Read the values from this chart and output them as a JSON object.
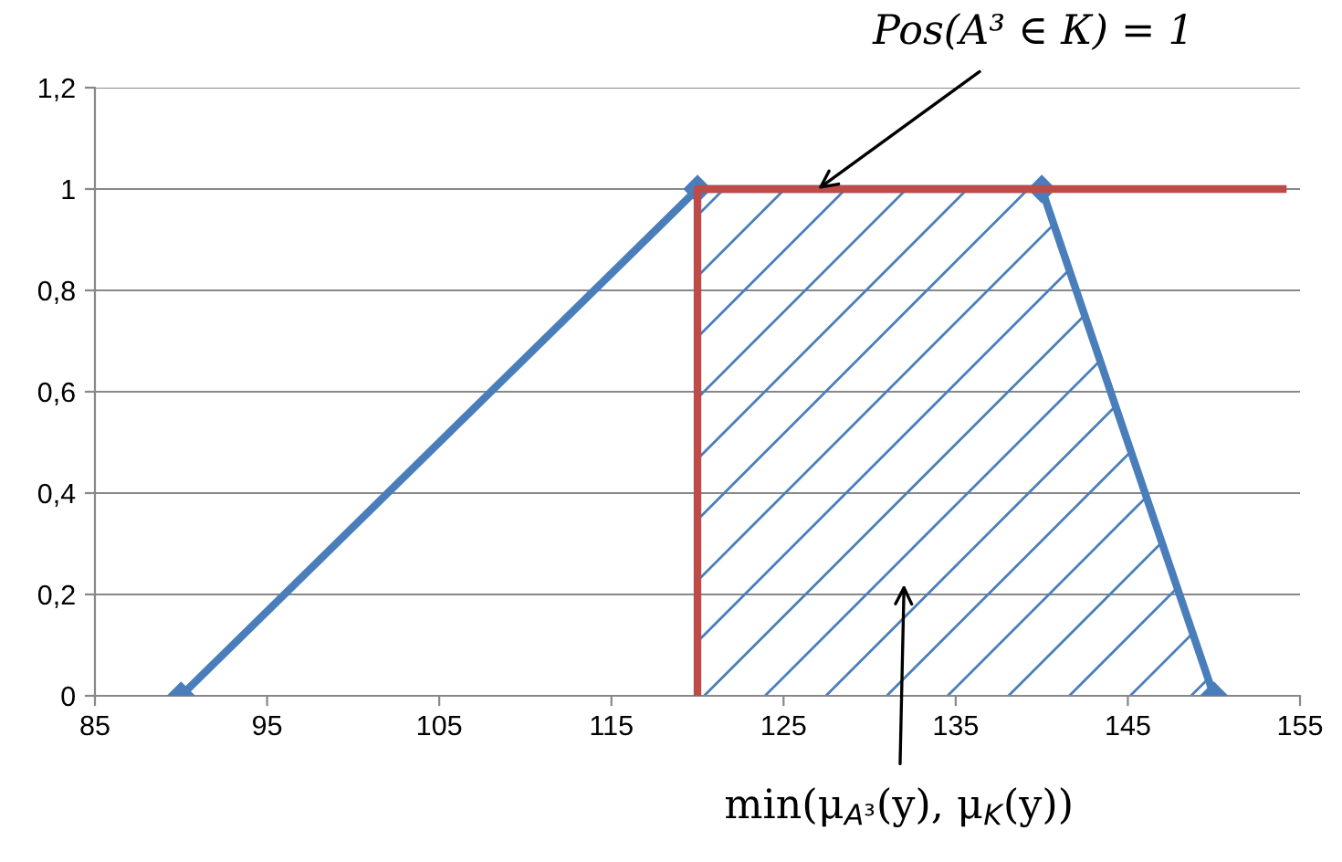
{
  "chart_data": {
    "type": "line",
    "xlim": [
      85,
      155
    ],
    "xticks": [
      85,
      95,
      105,
      115,
      125,
      135,
      145,
      155
    ],
    "ylim": [
      0,
      1.2
    ],
    "yticks": [
      {
        "value": 0,
        "label": "0"
      },
      {
        "value": 0.2,
        "label": "0,2"
      },
      {
        "value": 0.4,
        "label": "0,4"
      },
      {
        "value": 0.6,
        "label": "0,6"
      },
      {
        "value": 0.8,
        "label": "0,8"
      },
      {
        "value": 1,
        "label": "1"
      },
      {
        "value": 1.2,
        "label": "1,2"
      }
    ],
    "grid": "y",
    "legend": false,
    "series": [
      {
        "color": "#4a7ebb",
        "x": [
          90,
          120,
          140,
          150
        ],
        "values": [
          0,
          1,
          1,
          0
        ],
        "marker": "diamond"
      },
      {
        "color": "#be4b48",
        "x": [
          120,
          120,
          154
        ],
        "values": [
          0,
          1,
          1
        ],
        "marker": "none"
      },
      {
        "type": "area",
        "color": "#4a7ebb",
        "x": [
          120,
          140,
          150
        ],
        "values": [
          1,
          1,
          0
        ]
      }
    ],
    "annotations": [
      {
        "text": "Pos(A³ ∈ К) = 1",
        "x": 127,
        "y": 1
      },
      "min(μ$_{A³}$(y), μ$_{K}$(y))"
    ]
  }
}
